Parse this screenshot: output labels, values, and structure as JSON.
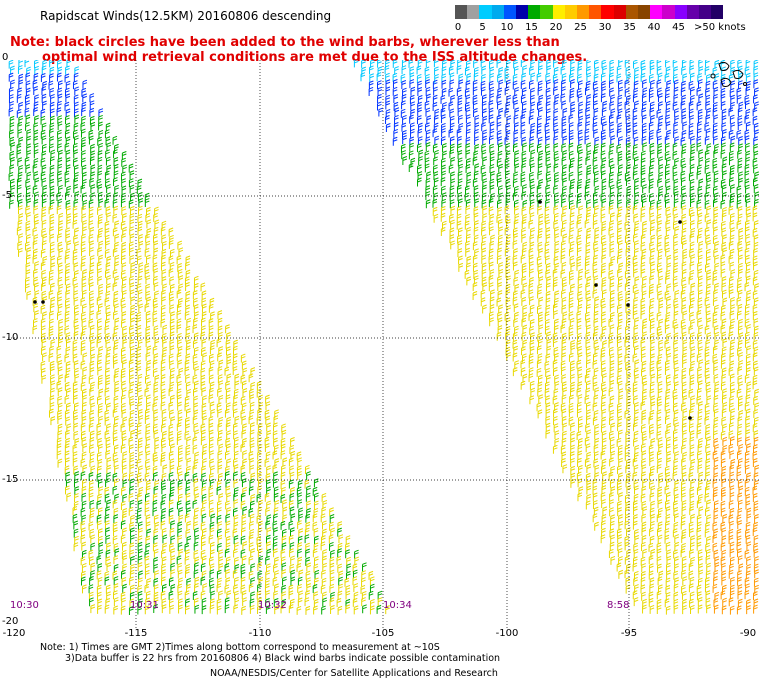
{
  "title": "Rapidscat Winds(12.5KM) 20160806 descending",
  "note_line1": "Note: black circles have been added to the wind barbs, wherever less than",
  "note_line2": "optimal wind retrieval conditions are met due to the ISS altitude changes.",
  "legend": {
    "labels": [
      "0",
      "5",
      "10",
      "15",
      "20",
      "25",
      "30",
      "35",
      "40",
      "45",
      ">50 knots"
    ],
    "colors": [
      "#555555",
      "#a0a0a0",
      "#00ccff",
      "#00aaee",
      "#0055ff",
      "#0000aa",
      "#00aa00",
      "#44cc00",
      "#ffee00",
      "#ffcc00",
      "#ff9900",
      "#ff5500",
      "#ff0000",
      "#dd0000",
      "#aa5500",
      "#884400",
      "#ff00ff",
      "#cc00cc",
      "#8800ff",
      "#6600aa",
      "#440088",
      "#220066"
    ]
  },
  "lat_labels": [
    "0",
    "-5",
    "-10",
    "-15",
    "-20"
  ],
  "lon_labels": [
    "-120",
    "-115",
    "-110",
    "-105",
    "-100",
    "-95",
    "-90"
  ],
  "times": [
    "10:30",
    "10:31",
    "10:32",
    "10:34",
    "8:58"
  ],
  "footer_line1": "Note: 1) Times are GMT 2)Times along bottom correspond to measurement at ~10S",
  "footer_line2": "3)Data buffer is 22 hrs from 20160806 4) Black wind barbs indicate possible contamination",
  "footer_line3": "NOAA/NESDIS/Center for Satellite Applications and Research",
  "barb_colors": {
    "cyan": "#00c8ff",
    "blue": "#0033ff",
    "green": "#00aa00",
    "yellow": "#e8d800",
    "orange": "#ff9900",
    "black": "#000000"
  },
  "grid_color": "#000000"
}
